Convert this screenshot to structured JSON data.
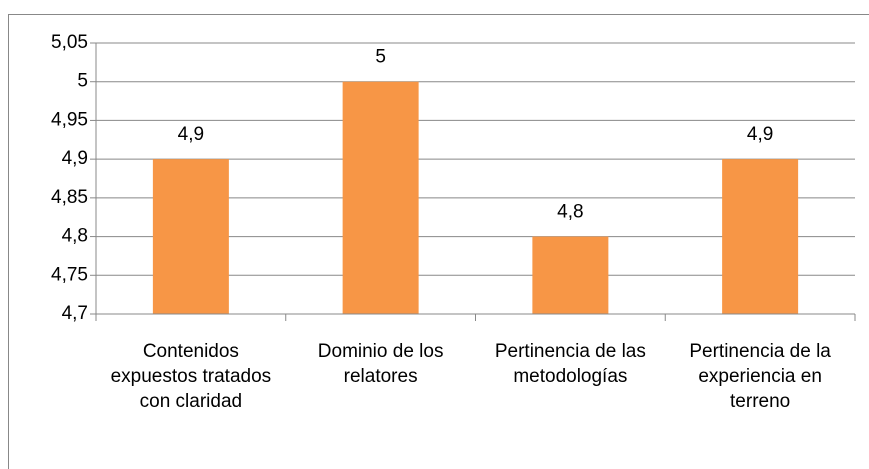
{
  "chart_data": {
    "type": "bar",
    "categories": [
      "Contenidos expuestos tratados con claridad",
      "Dominio de los relatores",
      "Pertinencia de las metodologías",
      "Pertinencia de la experiencia en terreno"
    ],
    "values": [
      4.9,
      5,
      4.8,
      4.9
    ],
    "value_labels": [
      "4,9",
      "5",
      "4,8",
      "4,9"
    ],
    "color": "#f79646",
    "ylim": [
      4.7,
      5.05
    ],
    "yticks": [
      {
        "value": 4.7,
        "label": "4,7"
      },
      {
        "value": 4.75,
        "label": "4,75"
      },
      {
        "value": 4.8,
        "label": "4,8"
      },
      {
        "value": 4.85,
        "label": "4,85"
      },
      {
        "value": 4.9,
        "label": "4,9"
      },
      {
        "value": 4.95,
        "label": "4,95"
      },
      5,
      {
        "value": 5.05,
        "label": "5,05"
      }
    ],
    "grid": true
  }
}
